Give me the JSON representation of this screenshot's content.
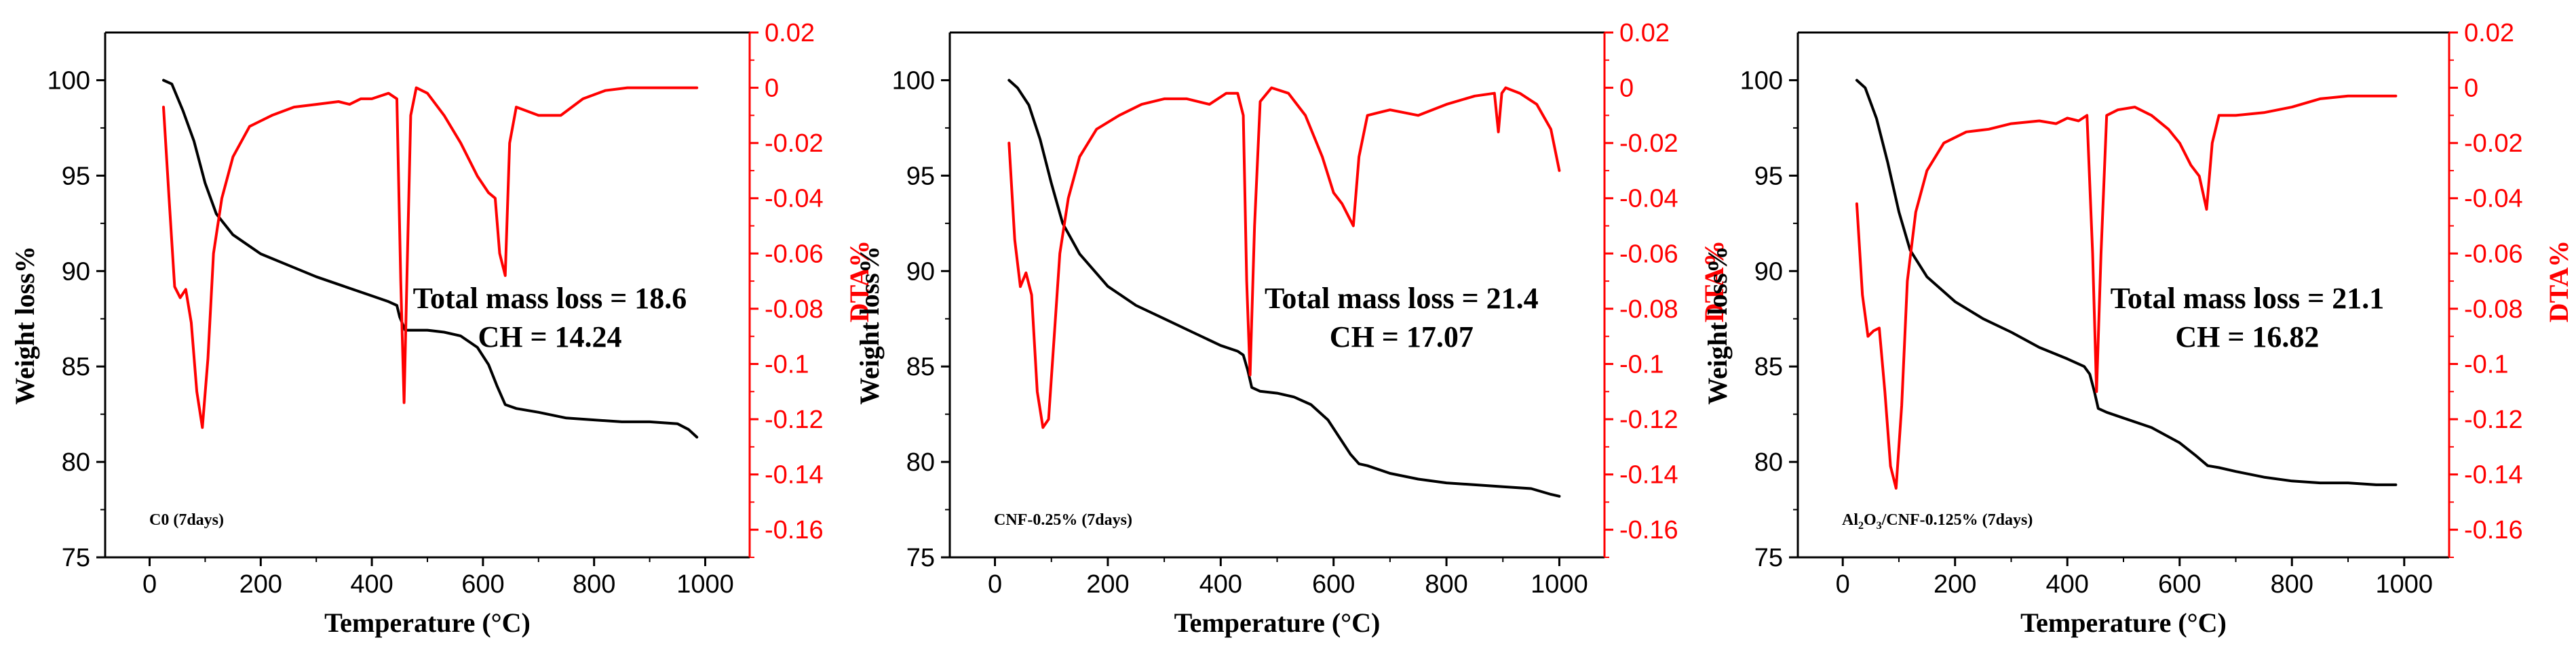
{
  "chart_data": [
    {
      "type": "line",
      "sample_label": "C0 (7days)",
      "annotation_lines": [
        "Total mass loss = 18.6",
        "CH = 14.24"
      ],
      "xlabel": "Temperature (°C)",
      "ylabel_left": "Weight loss%",
      "ylabel_right": "DTA%",
      "xlim": [
        -80,
        1080
      ],
      "xticks": [
        0,
        200,
        400,
        600,
        800,
        1000
      ],
      "xtick_labels": [
        "0",
        "200",
        "400",
        "600",
        "800",
        "1000"
      ],
      "ylim_left": [
        75,
        102.5
      ],
      "yticks_left": [
        75,
        80,
        85,
        90,
        95,
        100
      ],
      "ytick_labels_left": [
        "75",
        "80",
        "85",
        "90",
        "95",
        "100"
      ],
      "ylim_right": [
        -0.17,
        0.02
      ],
      "yticks_right": [
        0.02,
        0,
        -0.02,
        -0.04,
        -0.06,
        -0.08,
        -0.1,
        -0.12,
        -0.14,
        -0.16
      ],
      "ytick_labels_right": [
        "0.02",
        "0",
        "-0.02",
        "-0.04",
        "-0.06",
        "-0.08",
        "-0.1",
        "-0.12",
        "-0.14",
        "-0.16"
      ],
      "colors": {
        "weight": "#000000",
        "dta": "#ff0000",
        "axis": "#000000",
        "right_axis": "#ff0000"
      },
      "series": [
        {
          "name": "Weight loss",
          "axis": "left",
          "x": [
            25,
            40,
            60,
            80,
            100,
            120,
            150,
            200,
            250,
            300,
            350,
            400,
            430,
            445,
            450,
            460,
            480,
            500,
            530,
            560,
            590,
            610,
            625,
            640,
            660,
            700,
            750,
            800,
            850,
            900,
            950,
            970,
            985
          ],
          "y": [
            100,
            99.8,
            98.4,
            96.8,
            94.6,
            93.0,
            91.9,
            90.9,
            90.3,
            89.7,
            89.2,
            88.7,
            88.4,
            88.2,
            87.6,
            86.9,
            86.9,
            86.9,
            86.8,
            86.6,
            86.0,
            85.1,
            84.0,
            83.0,
            82.8,
            82.6,
            82.3,
            82.2,
            82.1,
            82.1,
            82.0,
            81.7,
            81.3
          ]
        },
        {
          "name": "DTA",
          "axis": "right",
          "x": [
            25,
            35,
            45,
            55,
            65,
            75,
            85,
            95,
            105,
            115,
            130,
            150,
            180,
            220,
            260,
            300,
            340,
            360,
            380,
            400,
            430,
            445,
            452,
            458,
            463,
            470,
            480,
            500,
            530,
            560,
            590,
            610,
            622,
            630,
            640,
            648,
            660,
            700,
            740,
            780,
            820,
            860,
            900,
            950,
            985
          ],
          "y": [
            -0.007,
            -0.04,
            -0.072,
            -0.076,
            -0.073,
            -0.085,
            -0.11,
            -0.123,
            -0.098,
            -0.06,
            -0.04,
            -0.025,
            -0.014,
            -0.01,
            -0.007,
            -0.006,
            -0.005,
            -0.006,
            -0.004,
            -0.004,
            -0.002,
            -0.004,
            -0.07,
            -0.114,
            -0.07,
            -0.01,
            0.0,
            -0.002,
            -0.01,
            -0.02,
            -0.032,
            -0.038,
            -0.04,
            -0.06,
            -0.068,
            -0.02,
            -0.007,
            -0.01,
            -0.01,
            -0.004,
            -0.001,
            0.0,
            0.0,
            0.0,
            0.0
          ]
        }
      ]
    },
    {
      "type": "line",
      "sample_label": "CNF-0.25% (7days)",
      "annotation_lines": [
        "Total mass loss = 21.4",
        "CH = 17.07"
      ],
      "xlabel": "Temperature (°C)",
      "ylabel_left": "Weight loss%",
      "ylabel_right": "DTA%",
      "xlim": [
        -80,
        1080
      ],
      "xticks": [
        0,
        200,
        400,
        600,
        800,
        1000
      ],
      "xtick_labels": [
        "0",
        "200",
        "400",
        "600",
        "800",
        "1000"
      ],
      "ylim_left": [
        75,
        102.5
      ],
      "yticks_left": [
        75,
        80,
        85,
        90,
        95,
        100
      ],
      "ytick_labels_left": [
        "75",
        "80",
        "85",
        "90",
        "95",
        "100"
      ],
      "ylim_right": [
        -0.17,
        0.02
      ],
      "yticks_right": [
        0.02,
        0,
        -0.02,
        -0.04,
        -0.06,
        -0.08,
        -0.1,
        -0.12,
        -0.14,
        -0.16
      ],
      "ytick_labels_right": [
        "0.02",
        "0",
        "-0.02",
        "-0.04",
        "-0.06",
        "-0.08",
        "-0.1",
        "-0.12",
        "-0.14",
        "-0.16"
      ],
      "colors": {
        "weight": "#000000",
        "dta": "#ff0000",
        "axis": "#000000",
        "right_axis": "#ff0000"
      },
      "series": [
        {
          "name": "Weight loss",
          "axis": "left",
          "x": [
            25,
            40,
            60,
            80,
            100,
            120,
            150,
            200,
            250,
            300,
            350,
            400,
            430,
            440,
            448,
            455,
            470,
            500,
            530,
            560,
            590,
            610,
            630,
            645,
            660,
            700,
            750,
            800,
            850,
            900,
            950,
            985,
            1000
          ],
          "y": [
            100,
            99.6,
            98.7,
            96.9,
            94.6,
            92.5,
            90.9,
            89.2,
            88.2,
            87.5,
            86.8,
            86.1,
            85.8,
            85.6,
            84.8,
            83.9,
            83.7,
            83.6,
            83.4,
            83.0,
            82.2,
            81.3,
            80.4,
            79.9,
            79.8,
            79.4,
            79.1,
            78.9,
            78.8,
            78.7,
            78.6,
            78.3,
            78.2
          ]
        },
        {
          "name": "DTA",
          "axis": "right",
          "x": [
            25,
            35,
            45,
            55,
            65,
            75,
            85,
            95,
            105,
            115,
            130,
            150,
            180,
            220,
            260,
            300,
            340,
            380,
            410,
            430,
            440,
            446,
            452,
            460,
            470,
            490,
            520,
            550,
            580,
            600,
            615,
            625,
            635,
            645,
            660,
            700,
            750,
            800,
            850,
            885,
            892,
            898,
            905,
            930,
            960,
            985,
            1000
          ],
          "y": [
            -0.02,
            -0.055,
            -0.072,
            -0.067,
            -0.075,
            -0.11,
            -0.123,
            -0.12,
            -0.09,
            -0.06,
            -0.04,
            -0.025,
            -0.015,
            -0.01,
            -0.006,
            -0.004,
            -0.004,
            -0.006,
            -0.002,
            -0.002,
            -0.01,
            -0.07,
            -0.104,
            -0.05,
            -0.005,
            0.0,
            -0.002,
            -0.01,
            -0.025,
            -0.038,
            -0.042,
            -0.046,
            -0.05,
            -0.025,
            -0.01,
            -0.008,
            -0.01,
            -0.006,
            -0.003,
            -0.002,
            -0.016,
            -0.002,
            0.0,
            -0.002,
            -0.006,
            -0.015,
            -0.03
          ]
        }
      ]
    },
    {
      "type": "line",
      "sample_label": "Al2O3/CNF-0.125% (7days)",
      "sample_label_parts": [
        "Al",
        "2",
        "O",
        "3",
        "/CNF-0.125% (7days)"
      ],
      "annotation_lines": [
        "Total mass loss = 21.1",
        "CH = 16.82"
      ],
      "xlabel": "Temperature (°C)",
      "ylabel_left": "Weight loss%",
      "ylabel_right": "DTA%",
      "xlim": [
        -80,
        1080
      ],
      "xticks": [
        0,
        200,
        400,
        600,
        800,
        1000
      ],
      "xtick_labels": [
        "0",
        "200",
        "400",
        "600",
        "800",
        "1000"
      ],
      "ylim_left": [
        75,
        102.5
      ],
      "yticks_left": [
        75,
        80,
        85,
        90,
        95,
        100
      ],
      "ytick_labels_left": [
        "75",
        "80",
        "85",
        "90",
        "95",
        "100"
      ],
      "ylim_right": [
        -0.17,
        0.02
      ],
      "yticks_right": [
        0.02,
        0,
        -0.02,
        -0.04,
        -0.06,
        -0.08,
        -0.1,
        -0.12,
        -0.14,
        -0.16
      ],
      "ytick_labels_right": [
        "0.02",
        "0",
        "-0.02",
        "-0.04",
        "-0.06",
        "-0.08",
        "-0.1",
        "-0.12",
        "-0.14",
        "-0.16"
      ],
      "colors": {
        "weight": "#000000",
        "dta": "#ff0000",
        "axis": "#000000",
        "right_axis": "#ff0000"
      },
      "series": [
        {
          "name": "Weight loss",
          "axis": "left",
          "x": [
            25,
            40,
            60,
            80,
            100,
            120,
            150,
            200,
            250,
            300,
            350,
            400,
            430,
            440,
            448,
            455,
            470,
            500,
            550,
            600,
            630,
            650,
            670,
            700,
            750,
            800,
            850,
            900,
            950,
            985
          ],
          "y": [
            100,
            99.6,
            98.0,
            95.7,
            93.1,
            91.1,
            89.7,
            88.4,
            87.5,
            86.8,
            86.0,
            85.4,
            85.0,
            84.6,
            83.7,
            82.8,
            82.6,
            82.3,
            81.8,
            81.0,
            80.3,
            79.8,
            79.7,
            79.5,
            79.2,
            79.0,
            78.9,
            78.9,
            78.8,
            78.8
          ]
        },
        {
          "name": "DTA",
          "axis": "right",
          "x": [
            25,
            35,
            45,
            55,
            65,
            75,
            85,
            95,
            105,
            115,
            130,
            150,
            180,
            220,
            260,
            300,
            350,
            380,
            400,
            420,
            435,
            445,
            452,
            460,
            470,
            490,
            520,
            550,
            580,
            600,
            620,
            635,
            648,
            658,
            670,
            700,
            750,
            800,
            850,
            900,
            950,
            985
          ],
          "y": [
            -0.042,
            -0.075,
            -0.09,
            -0.088,
            -0.087,
            -0.11,
            -0.137,
            -0.145,
            -0.115,
            -0.07,
            -0.045,
            -0.03,
            -0.02,
            -0.016,
            -0.015,
            -0.013,
            -0.012,
            -0.013,
            -0.011,
            -0.012,
            -0.01,
            -0.06,
            -0.11,
            -0.06,
            -0.01,
            -0.008,
            -0.007,
            -0.01,
            -0.015,
            -0.02,
            -0.028,
            -0.032,
            -0.044,
            -0.02,
            -0.01,
            -0.01,
            -0.009,
            -0.007,
            -0.004,
            -0.003,
            -0.003,
            -0.003
          ]
        }
      ]
    }
  ]
}
